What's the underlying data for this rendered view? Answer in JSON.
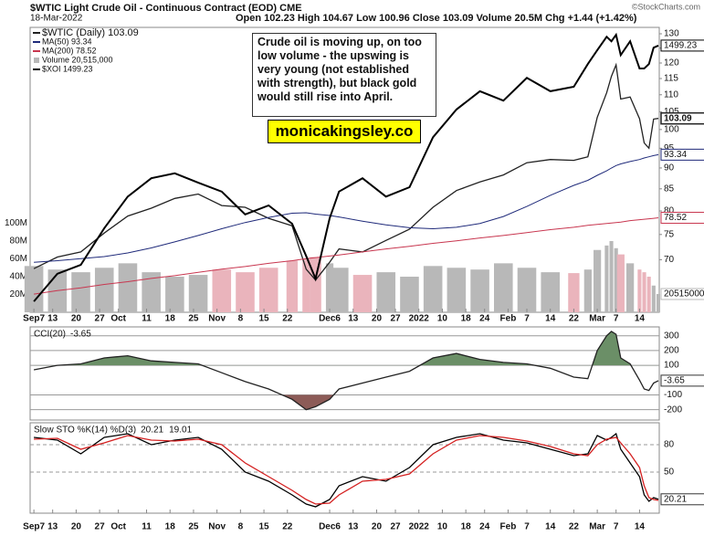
{
  "chart_data": [
    {
      "type": "line",
      "title": "$WTIC Light Crude Oil - Continuous Contract (EOD) CME",
      "date": "18-Mar-2022",
      "quote": "Open 102.23 High 104.67 Low 100.96 Close 103.09 Volume 20.5M Chg +1.44 (+1.42%)",
      "source": "©StockCharts.com",
      "annotation": "Crude oil is moving up, on too low volume - the upswing is very young (not established with strength), but black gold would still rise into April.",
      "watermark": "monicakingsley.co",
      "log_scale": true,
      "x": [
        0,
        5,
        10,
        15,
        20,
        25,
        30,
        35,
        40,
        45,
        50,
        55,
        58,
        60,
        63,
        65,
        70,
        75,
        80,
        85,
        90,
        95,
        100,
        105,
        110,
        115,
        118,
        120,
        122,
        123,
        124,
        125,
        127,
        129,
        130,
        131,
        132,
        133
      ],
      "xlim": [
        -0.8,
        133.2
      ],
      "xticks": [
        {
          "value": 0,
          "label": "Sep7"
        },
        {
          "value": 4,
          "label": "13"
        },
        {
          "value": 9,
          "label": "20"
        },
        {
          "value": 14,
          "label": "27"
        },
        {
          "value": 18,
          "label": "Oct"
        },
        {
          "value": 24,
          "label": "11"
        },
        {
          "value": 29,
          "label": "18"
        },
        {
          "value": 34,
          "label": "25"
        },
        {
          "value": 39,
          "label": "Nov"
        },
        {
          "value": 44,
          "label": "8"
        },
        {
          "value": 49,
          "label": "15"
        },
        {
          "value": 54,
          "label": "22"
        },
        {
          "value": 63,
          "label": "Dec6"
        },
        {
          "value": 68,
          "label": "13"
        },
        {
          "value": 73,
          "label": "20"
        },
        {
          "value": 77,
          "label": "27"
        },
        {
          "value": 82,
          "label": "2022"
        },
        {
          "value": 87,
          "label": "10"
        },
        {
          "value": 92,
          "label": "18"
        },
        {
          "value": 96,
          "label": "24"
        },
        {
          "value": 101,
          "label": "Feb"
        },
        {
          "value": 105,
          "label": "7"
        },
        {
          "value": 110,
          "label": "14"
        },
        {
          "value": 115,
          "label": "22"
        },
        {
          "value": 120,
          "label": "Mar"
        },
        {
          "value": 124,
          "label": "7"
        },
        {
          "value": 129,
          "label": "14"
        }
      ],
      "ylim": [
        60.6,
        132.3
      ],
      "yticks": [
        130,
        125,
        120,
        115,
        110,
        105,
        100,
        95,
        90,
        85,
        80,
        75,
        70
      ],
      "y2lim": [
        960,
        1536
      ],
      "y3lim": [
        0,
        320000000
      ],
      "y3ticks": [
        {
          "value": 100000000,
          "label": "100M"
        },
        {
          "value": 80000000,
          "label": "80M"
        },
        {
          "value": 60000000,
          "label": "60M"
        },
        {
          "value": 40000000,
          "label": "40M"
        },
        {
          "value": 20000000,
          "label": "20M"
        }
      ],
      "series": [
        {
          "name": "$WTIC (Daily) 103.09",
          "color": "#222222",
          "values": [
            68.3,
            70.5,
            71.5,
            75.3,
            78.9,
            80.6,
            82.8,
            83.8,
            81.2,
            80.8,
            78.4,
            76.8,
            68.2,
            66.2,
            69.5,
            72.1,
            71.5,
            73.8,
            76.1,
            80.8,
            84.6,
            86.6,
            88.3,
            91.3,
            92.1,
            91.9,
            92.8,
            103.4,
            110.6,
            115.7,
            119.4,
            108.7,
            109.3,
            103.0,
            96.4,
            95.0,
            102.9,
            103.09
          ]
        },
        {
          "name": "MA(50) 93.34",
          "color": "#1f2a7a",
          "values": [
            69.5,
            69.8,
            70.2,
            70.6,
            71.3,
            72.3,
            73.5,
            74.8,
            76.2,
            77.5,
            78.6,
            79.5,
            79.6,
            79.3,
            79.0,
            78.7,
            77.8,
            77.0,
            76.4,
            76.2,
            76.5,
            77.3,
            78.8,
            81.0,
            83.5,
            85.8,
            87.0,
            88.2,
            89.3,
            90.0,
            90.6,
            91.0,
            91.6,
            92.1,
            92.5,
            92.8,
            93.1,
            93.34
          ]
        },
        {
          "name": "MA(200) 78.52",
          "color": "#c8364f",
          "values": [
            63.7,
            64.3,
            64.8,
            65.4,
            65.9,
            66.5,
            67.0,
            67.6,
            68.2,
            68.7,
            69.3,
            69.8,
            70.2,
            70.4,
            70.7,
            70.9,
            71.5,
            72.1,
            72.6,
            73.2,
            73.7,
            74.3,
            74.8,
            75.4,
            76.0,
            76.5,
            76.9,
            77.1,
            77.3,
            77.4,
            77.5,
            77.6,
            77.9,
            78.1,
            78.2,
            78.3,
            78.4,
            78.52
          ]
        },
        {
          "name": "Volume 20,515,000",
          "color": "#b8b8b8",
          "down_color": "#eab4bc",
          "type": "bar",
          "axis": "y3",
          "values": [
            52000000,
            48000000,
            45000000,
            50000000,
            55000000,
            45000000,
            40000000,
            42000000,
            48000000,
            45000000,
            50000000,
            58000000,
            60000000,
            62000000,
            55000000,
            50000000,
            42000000,
            45000000,
            40000000,
            52000000,
            50000000,
            48000000,
            55000000,
            50000000,
            45000000,
            44000000,
            48000000,
            70000000,
            75000000,
            80000000,
            72000000,
            65000000,
            55000000,
            48000000,
            45000000,
            40000000,
            30000000,
            20515000
          ]
        },
        {
          "name": "$XOI 1499.23",
          "color": "#000000",
          "axis": "y2",
          "values": [
            982,
            1038,
            1056,
            1130,
            1194,
            1231,
            1241,
            1222,
            1204,
            1158,
            1176,
            1139,
            1074,
            1028,
            1150,
            1204,
            1231,
            1194,
            1213,
            1314,
            1370,
            1407,
            1388,
            1434,
            1407,
            1416,
            1462,
            1490,
            1517,
            1508,
            1521,
            1480,
            1508,
            1453,
            1453,
            1462,
            1495,
            1499.23
          ]
        }
      ]
    },
    {
      "type": "line",
      "title": "CCI(20)",
      "x": [
        0,
        5,
        10,
        15,
        20,
        25,
        30,
        35,
        40,
        45,
        50,
        55,
        58,
        60,
        63,
        65,
        70,
        75,
        80,
        85,
        90,
        95,
        100,
        105,
        110,
        115,
        118,
        120,
        122,
        123,
        124,
        125,
        127,
        129,
        130,
        131,
        132,
        133
      ],
      "xlim": [
        -0.8,
        133.2
      ],
      "ylim": [
        -270,
        360
      ],
      "yticks": [
        300,
        200,
        100,
        -100,
        -200
      ],
      "fill_levels": [
        100,
        -100
      ],
      "upper_fill": "#6b8f67",
      "lower_fill": "#8c5b57",
      "series": [
        {
          "color": "#222222",
          "values": [
            70,
            100,
            110,
            150,
            165,
            130,
            120,
            110,
            50,
            -10,
            -60,
            -130,
            -200,
            -180,
            -130,
            -60,
            -20,
            20,
            60,
            150,
            180,
            140,
            120,
            110,
            80,
            20,
            10,
            200,
            300,
            330,
            310,
            150,
            110,
            0,
            -60,
            -70,
            -20,
            -3.65
          ]
        }
      ]
    },
    {
      "type": "line",
      "title": "Slow STO %K(14) %D(3)",
      "x": [
        0,
        5,
        10,
        15,
        20,
        25,
        30,
        35,
        40,
        45,
        50,
        55,
        58,
        60,
        63,
        65,
        70,
        75,
        80,
        85,
        90,
        95,
        100,
        105,
        110,
        115,
        118,
        120,
        122,
        123,
        124,
        125,
        127,
        129,
        130,
        131,
        132,
        133
      ],
      "xlim": [
        -0.8,
        133.2
      ],
      "xticks": [
        {
          "value": 0,
          "label": "Sep7"
        },
        {
          "value": 4,
          "label": "13"
        },
        {
          "value": 9,
          "label": "20"
        },
        {
          "value": 14,
          "label": "27"
        },
        {
          "value": 18,
          "label": "Oct"
        },
        {
          "value": 24,
          "label": "11"
        },
        {
          "value": 29,
          "label": "18"
        },
        {
          "value": 34,
          "label": "25"
        },
        {
          "value": 39,
          "label": "Nov"
        },
        {
          "value": 44,
          "label": "8"
        },
        {
          "value": 49,
          "label": "15"
        },
        {
          "value": 54,
          "label": "22"
        },
        {
          "value": 63,
          "label": "Dec6"
        },
        {
          "value": 68,
          "label": "13"
        },
        {
          "value": 73,
          "label": "20"
        },
        {
          "value": 77,
          "label": "27"
        },
        {
          "value": 82,
          "label": "2022"
        },
        {
          "value": 87,
          "label": "10"
        },
        {
          "value": 92,
          "label": "18"
        },
        {
          "value": 96,
          "label": "24"
        },
        {
          "value": 101,
          "label": "Feb"
        },
        {
          "value": 105,
          "label": "7"
        },
        {
          "value": 110,
          "label": "14"
        },
        {
          "value": 115,
          "label": "22"
        },
        {
          "value": 120,
          "label": "Mar"
        },
        {
          "value": 124,
          "label": "7"
        },
        {
          "value": 129,
          "label": "14"
        }
      ],
      "ylim": [
        5,
        104
      ],
      "yticks": [
        80,
        50
      ],
      "series": [
        {
          "color": "#000000",
          "values": [
            88,
            85,
            70,
            88,
            92,
            80,
            85,
            88,
            75,
            50,
            40,
            25,
            15,
            12,
            20,
            35,
            45,
            40,
            55,
            80,
            88,
            92,
            85,
            82,
            75,
            68,
            70,
            90,
            85,
            88,
            92,
            75,
            60,
            45,
            25,
            18,
            22,
            20.21
          ]
        },
        {
          "color": "#d42020",
          "values": [
            86,
            87,
            75,
            82,
            90,
            85,
            84,
            86,
            80,
            60,
            45,
            30,
            20,
            15,
            16,
            25,
            40,
            42,
            48,
            70,
            85,
            90,
            88,
            84,
            78,
            70,
            68,
            80,
            86,
            87,
            88,
            82,
            70,
            55,
            35,
            22,
            20,
            19.01
          ]
        }
      ]
    }
  ]
}
